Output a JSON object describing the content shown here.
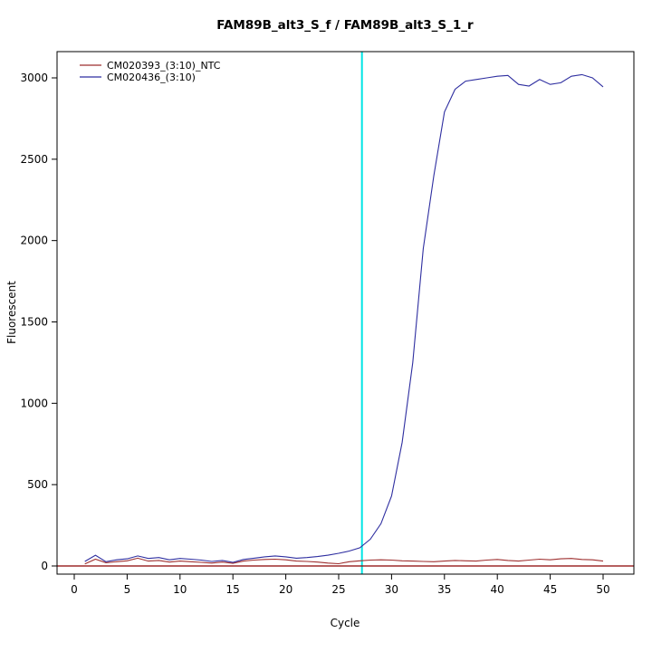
{
  "chart_data": {
    "type": "line",
    "title": "FAM89B_alt3_S_f / FAM89B_alt3_S_1_r",
    "xlabel": "Cycle",
    "ylabel": "Fluorescent",
    "xlim": [
      0,
      50
    ],
    "ylim": [
      0,
      3000
    ],
    "x_ticks": [
      0,
      5,
      10,
      15,
      20,
      25,
      30,
      35,
      40,
      45,
      50
    ],
    "y_ticks": [
      0,
      500,
      1000,
      1500,
      2000,
      2500,
      3000
    ],
    "grid": "off",
    "legend_position": "top-left",
    "threshold_line": {
      "x": 27.2,
      "color": "#00e5e5"
    },
    "baseline": {
      "y": 0,
      "color": "#8b0000"
    },
    "x": [
      1,
      2,
      3,
      4,
      5,
      6,
      7,
      8,
      9,
      10,
      11,
      12,
      13,
      14,
      15,
      16,
      17,
      18,
      19,
      20,
      21,
      22,
      23,
      24,
      25,
      26,
      27,
      28,
      29,
      30,
      31,
      32,
      33,
      34,
      35,
      36,
      37,
      38,
      39,
      40,
      41,
      42,
      43,
      44,
      45,
      46,
      47,
      48,
      49,
      50
    ],
    "series": [
      {
        "name": "CM020393_(3:10)_NTC",
        "color": "#9e2f2f",
        "values": [
          12,
          42,
          20,
          26,
          32,
          48,
          30,
          34,
          24,
          30,
          26,
          22,
          18,
          24,
          16,
          30,
          36,
          40,
          42,
          38,
          30,
          28,
          24,
          18,
          14,
          26,
          32,
          36,
          38,
          36,
          32,
          30,
          28,
          26,
          30,
          34,
          32,
          30,
          36,
          40,
          34,
          30,
          36,
          42,
          38,
          44,
          46,
          40,
          38,
          30
        ]
      },
      {
        "name": "CM020436_(3:10)",
        "color": "#2e2ea0",
        "values": [
          28,
          66,
          26,
          38,
          44,
          62,
          46,
          52,
          38,
          46,
          42,
          36,
          28,
          34,
          22,
          40,
          48,
          56,
          62,
          56,
          48,
          52,
          58,
          66,
          78,
          92,
          112,
          165,
          260,
          430,
          760,
          1250,
          1950,
          2400,
          2790,
          2930,
          2980,
          2990,
          3000,
          3010,
          3015,
          2960,
          2950,
          2990,
          2960,
          2970,
          3010,
          3020,
          3000,
          2945
        ]
      }
    ]
  }
}
